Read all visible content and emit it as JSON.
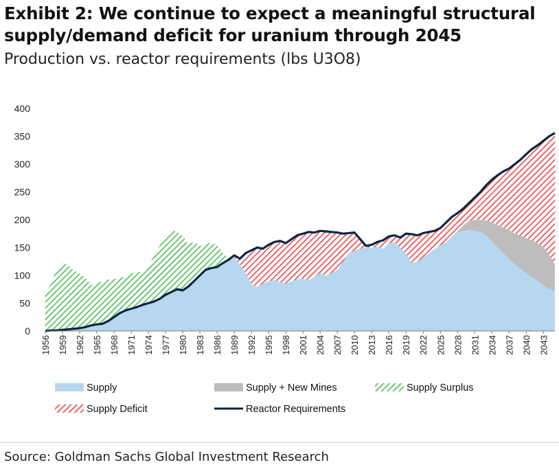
{
  "header": {
    "title": "Exhibit 2: We continue to expect a meaningful structural supply/demand deficit for uranium through 2045",
    "subtitle": "Production vs. reactor requirements (lbs U3O8)"
  },
  "footer": {
    "source": "Source: Goldman Sachs Global Investment Research"
  },
  "colors": {
    "supply": "#b6d7ee",
    "new_mines": "#bdbdbd",
    "surplus": "#53c05e",
    "deficit": "#e84d4d",
    "reactor": "#0c2542"
  },
  "chart_data": {
    "type": "area",
    "title": "Production vs. reactor requirements (lbs U3O8)",
    "xlabel": "",
    "ylabel": "",
    "ylim": [
      0,
      400
    ],
    "yticks": [
      "0",
      "50",
      "100",
      "150",
      "200",
      "250",
      "300",
      "350",
      "400"
    ],
    "xticks": [
      "1956",
      "1959",
      "1962",
      "1965",
      "1968",
      "1971",
      "1974",
      "1977",
      "1980",
      "1983",
      "1986",
      "1989",
      "1992",
      "1995",
      "1998",
      "2001",
      "2004",
      "2007",
      "2010",
      "2013",
      "2016",
      "2019",
      "2022",
      "2025",
      "2028",
      "2031",
      "2034",
      "2037",
      "2040",
      "2043"
    ],
    "x": [
      1956,
      1957,
      1958,
      1959,
      1960,
      1961,
      1962,
      1963,
      1964,
      1965,
      1966,
      1967,
      1968,
      1969,
      1970,
      1971,
      1972,
      1973,
      1974,
      1975,
      1976,
      1977,
      1978,
      1979,
      1980,
      1981,
      1982,
      1983,
      1984,
      1985,
      1986,
      1987,
      1988,
      1989,
      1990,
      1991,
      1992,
      1993,
      1994,
      1995,
      1996,
      1997,
      1998,
      1999,
      2000,
      2001,
      2002,
      2003,
      2004,
      2005,
      2006,
      2007,
      2008,
      2009,
      2010,
      2011,
      2012,
      2013,
      2014,
      2015,
      2016,
      2017,
      2018,
      2019,
      2020,
      2021,
      2022,
      2023,
      2024,
      2025,
      2026,
      2027,
      2028,
      2029,
      2030,
      2031,
      2032,
      2033,
      2034,
      2035,
      2036,
      2037,
      2038,
      2039,
      2040,
      2041,
      2042,
      2043,
      2044,
      2045
    ],
    "series": [
      {
        "name": "Supply",
        "values": [
          65,
          85,
          110,
          123,
          118,
          108,
          103,
          95,
          82,
          86,
          89,
          92,
          93,
          95,
          98,
          103,
          106,
          105,
          115,
          135,
          153,
          170,
          182,
          178,
          170,
          155,
          160,
          152,
          157,
          158,
          154,
          140,
          130,
          132,
          120,
          105,
          85,
          80,
          85,
          90,
          92,
          88,
          85,
          90,
          93,
          95,
          92,
          98,
          105,
          100,
          105,
          110,
          125,
          140,
          145,
          148,
          150,
          150,
          152,
          148,
          158,
          160,
          150,
          140,
          122,
          125,
          132,
          140,
          148,
          155,
          160,
          170,
          178,
          180,
          182,
          180,
          178,
          172,
          162,
          150,
          140,
          130,
          120,
          112,
          103,
          97,
          90,
          82,
          76,
          72
        ]
      },
      {
        "name": "Supply + New Mines",
        "values": [
          65,
          85,
          110,
          123,
          118,
          108,
          103,
          95,
          82,
          86,
          89,
          92,
          93,
          95,
          98,
          103,
          106,
          105,
          115,
          135,
          153,
          170,
          182,
          178,
          170,
          155,
          160,
          152,
          157,
          158,
          154,
          140,
          130,
          132,
          120,
          105,
          85,
          80,
          85,
          90,
          92,
          88,
          85,
          90,
          93,
          95,
          92,
          98,
          105,
          100,
          105,
          110,
          125,
          140,
          145,
          148,
          150,
          150,
          152,
          148,
          158,
          160,
          150,
          140,
          122,
          125,
          132,
          140,
          148,
          155,
          160,
          170,
          180,
          190,
          198,
          200,
          200,
          199,
          196,
          191,
          186,
          182,
          176,
          172,
          167,
          163,
          158,
          152,
          138,
          120
        ]
      },
      {
        "name": "Reactor Requirements",
        "values": [
          0,
          1,
          1,
          2,
          3,
          4,
          5,
          7,
          10,
          12,
          13,
          18,
          25,
          32,
          37,
          40,
          43,
          47,
          50,
          53,
          58,
          65,
          70,
          75,
          73,
          80,
          90,
          100,
          110,
          113,
          115,
          122,
          128,
          136,
          130,
          140,
          145,
          150,
          148,
          155,
          160,
          162,
          158,
          165,
          172,
          175,
          178,
          177,
          180,
          179,
          178,
          177,
          175,
          176,
          177,
          165,
          153,
          155,
          160,
          163,
          170,
          172,
          168,
          175,
          174,
          172,
          176,
          178,
          180,
          185,
          195,
          205,
          212,
          220,
          230,
          240,
          250,
          262,
          272,
          280,
          287,
          292,
          300,
          308,
          318,
          327,
          334,
          342,
          350,
          356
        ]
      }
    ],
    "fills": [
      "Supply Surplus",
      "Supply Deficit"
    ],
    "legend": [
      {
        "label": "Supply",
        "kind": "supply"
      },
      {
        "label": "Supply + New Mines",
        "kind": "new_mines"
      },
      {
        "label": "Supply Surplus",
        "kind": "surplus"
      },
      {
        "label": "Supply Deficit",
        "kind": "deficit"
      },
      {
        "label": "Reactor Requirements",
        "kind": "reactor"
      }
    ],
    "legend_position": "bottom",
    "grid": false
  }
}
